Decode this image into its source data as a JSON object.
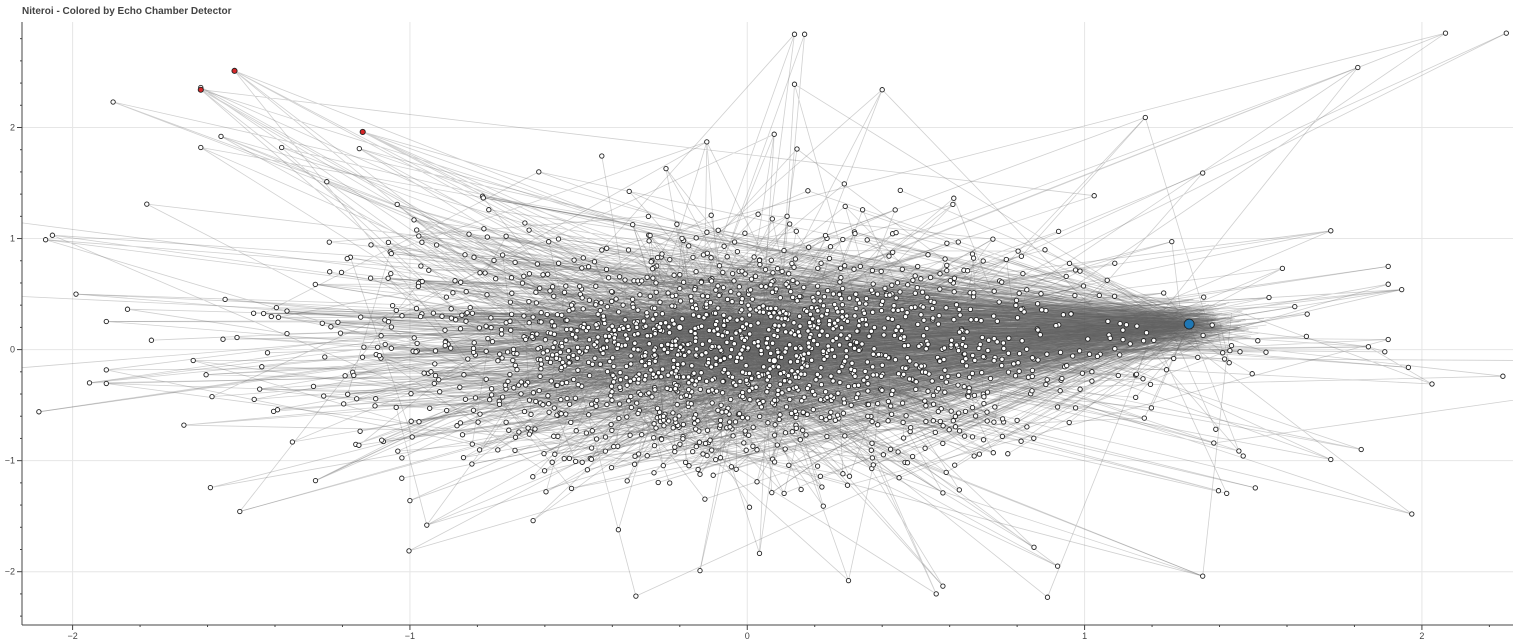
{
  "title": "Niteroi - Colored by Echo Chamber Detector",
  "chart_data": {
    "type": "scatter",
    "subtype": "network-graph",
    "title": "Niteroi - Colored by Echo Chamber Detector",
    "xlabel": "",
    "ylabel": "",
    "xlim": [
      -2.15,
      2.27
    ],
    "ylim": [
      -2.48,
      2.95
    ],
    "x_ticks": [
      -2,
      -1,
      0,
      1,
      2
    ],
    "y_ticks": [
      -2,
      -1,
      0,
      1,
      2
    ],
    "x_tick_labels": [
      "−2",
      "−1",
      "0",
      "1",
      "2"
    ],
    "y_tick_labels": [
      "−2",
      "−1",
      "0",
      "1",
      "2"
    ],
    "grid": true,
    "legend": "none",
    "colors": {
      "edge": "#555555",
      "node_fill": "#ffffff",
      "node_stroke": "#222222",
      "highlight_blue": "#1f77b4",
      "highlight_red": "#d62728",
      "grid": "#e6e6e6"
    },
    "hub_nodes": [
      {
        "x": -0.2,
        "y": 0.2
      },
      {
        "x": 0.08,
        "y": -0.1
      },
      {
        "x": 1.31,
        "y": 0.23
      }
    ],
    "highlight_nodes": [
      {
        "x": 1.31,
        "y": 0.23,
        "color": "blue"
      },
      {
        "x": -1.52,
        "y": 2.51,
        "color": "red"
      },
      {
        "x": -1.62,
        "y": 2.34,
        "color": "red"
      },
      {
        "x": -1.14,
        "y": 1.96,
        "color": "red"
      }
    ],
    "outlier_nodes": [
      {
        "x": 0.14,
        "y": 2.84
      },
      {
        "x": 0.17,
        "y": 2.84
      },
      {
        "x": 0.14,
        "y": 2.39
      },
      {
        "x": 0.4,
        "y": 2.34
      },
      {
        "x": -1.88,
        "y": 2.23
      },
      {
        "x": -1.62,
        "y": 2.36
      },
      {
        "x": -1.56,
        "y": 1.92
      },
      {
        "x": -1.62,
        "y": 1.82
      },
      {
        "x": -1.38,
        "y": 1.82
      },
      {
        "x": -1.15,
        "y": 1.81
      },
      {
        "x": 1.18,
        "y": 2.09
      },
      {
        "x": 2.07,
        "y": 2.85
      },
      {
        "x": 2.25,
        "y": 2.85
      },
      {
        "x": 1.81,
        "y": 2.54
      },
      {
        "x": -2.06,
        "y": 1.03
      },
      {
        "x": -2.08,
        "y": 0.99
      },
      {
        "x": -1.99,
        "y": 0.5
      },
      {
        "x": -2.1,
        "y": -0.56
      },
      {
        "x": -1.95,
        "y": -0.3
      },
      {
        "x": 1.94,
        "y": 0.54
      },
      {
        "x": 1.73,
        "y": 1.07
      },
      {
        "x": 1.66,
        "y": 0.32
      },
      {
        "x": 1.96,
        "y": -0.16
      },
      {
        "x": 1.89,
        "y": -0.02
      },
      {
        "x": 2.24,
        "y": -0.24
      },
      {
        "x": 2.03,
        "y": -0.31
      },
      {
        "x": 1.97,
        "y": -1.48
      },
      {
        "x": 1.73,
        "y": -0.99
      },
      {
        "x": 1.82,
        "y": -0.9
      },
      {
        "x": -0.33,
        "y": -2.22
      },
      {
        "x": 0.56,
        "y": -2.2
      },
      {
        "x": 0.89,
        "y": -2.23
      },
      {
        "x": 0.3,
        "y": -2.08
      },
      {
        "x": 1.35,
        "y": -2.04
      },
      {
        "x": 0.58,
        "y": -2.13
      },
      {
        "x": -0.14,
        "y": -1.99
      },
      {
        "x": 0.85,
        "y": -1.78
      },
      {
        "x": 0.92,
        "y": -1.95
      },
      {
        "x": -1.0,
        "y": -1.36
      },
      {
        "x": -0.95,
        "y": -1.58
      },
      {
        "x": -1.28,
        "y": -1.18
      },
      {
        "x": -1.67,
        "y": -0.68
      },
      {
        "x": -1.78,
        "y": 1.31
      },
      {
        "x": 1.35,
        "y": 1.59
      },
      {
        "x": -0.12,
        "y": 1.87
      },
      {
        "x": 0.08,
        "y": 1.94
      }
    ],
    "node_count_estimate": 2500
  }
}
